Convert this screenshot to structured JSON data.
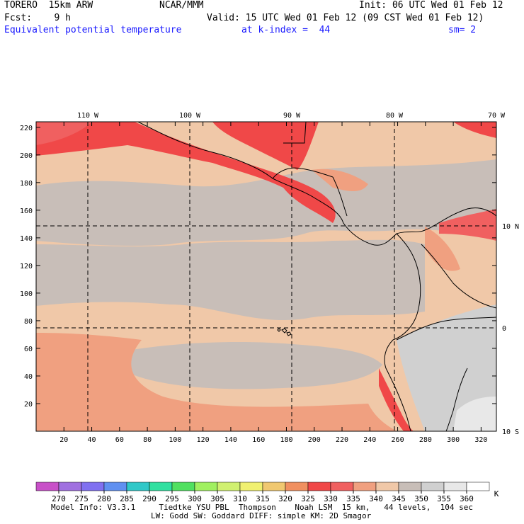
{
  "header": {
    "model": "TORERO  15km ARW",
    "center": "NCAR/MMM",
    "init": "Init: 06 UTC Wed 01 Feb 12",
    "fcst": "Fcst:    9 h",
    "valid": "Valid: 15 UTC Wed 01 Feb 12 (09 CST Wed 01 Feb 12)",
    "field": "Equivalent potential temperature",
    "level": "at k-index =  44",
    "smooth": "sm= 2"
  },
  "map": {
    "lon_labels": [
      "110 W",
      "100 W",
      "90 W",
      "80 W",
      "70 W"
    ],
    "lat_labels": [
      "10 N",
      "0",
      "10 S"
    ],
    "y_ticks": [
      "220",
      "200",
      "180",
      "160",
      "140",
      "120",
      "100",
      "80",
      "60",
      "40",
      "20"
    ],
    "x_ticks": [
      "20",
      "40",
      "60",
      "80",
      "100",
      "120",
      "140",
      "160",
      "180",
      "200",
      "220",
      "240",
      "260",
      "280",
      "300",
      "320"
    ]
  },
  "colorbar": {
    "unit": "K",
    "levels": [
      "270",
      "275",
      "280",
      "285",
      "290",
      "295",
      "300",
      "305",
      "310",
      "315",
      "320",
      "325",
      "330",
      "335",
      "340",
      "345",
      "350",
      "355",
      "360"
    ],
    "colors": [
      "#c850c8",
      "#a070e0",
      "#8070f0",
      "#6090f0",
      "#30c8c8",
      "#30e0a0",
      "#50e060",
      "#a0f060",
      "#d0f070",
      "#f0f070",
      "#f0c870",
      "#f09060",
      "#f04848",
      "#f06060",
      "#f0a080",
      "#f0c8a8",
      "#c8beb8",
      "#d0d0d0",
      "#e8e8e8",
      "#ffffff"
    ],
    "colors_note": ""
  },
  "footer": {
    "line1": "Model Info: V3.3.1     Tiedtke YSU PBL  Thompson    Noah LSM  15 km,   44 levels,  104 sec",
    "line2": "LW: Godd SW: Goddard DIFF: simple KM: 2D Smagor"
  }
}
